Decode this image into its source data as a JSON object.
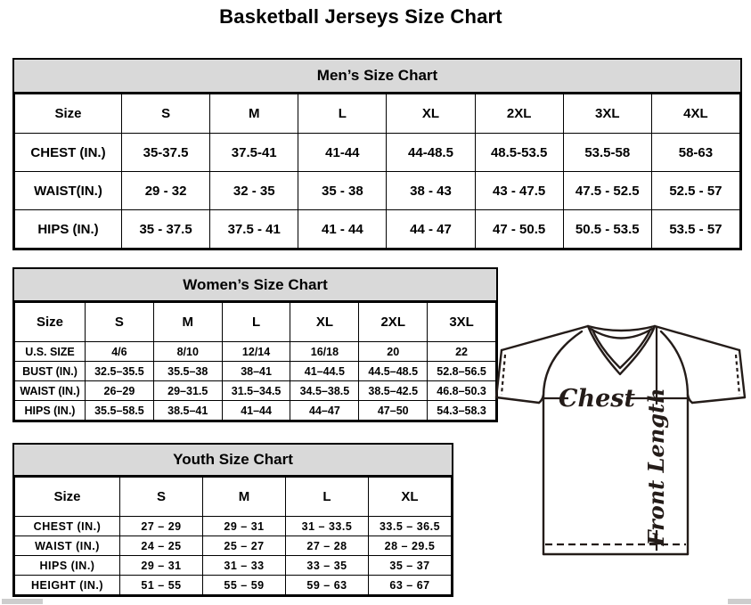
{
  "page_title": "Basketball Jerseys Size Chart",
  "tables": {
    "men": {
      "title": "Men’s Size Chart",
      "columns": [
        "Size",
        "S",
        "M",
        "L",
        "XL",
        "2XL",
        "3XL",
        "4XL"
      ],
      "rows": [
        {
          "label": "CHEST (IN.)",
          "values": [
            "35-37.5",
            "37.5-41",
            "41-44",
            "44-48.5",
            "48.5-53.5",
            "53.5-58",
            "58-63"
          ]
        },
        {
          "label": "WAIST(IN.)",
          "values": [
            "29 - 32",
            "32 - 35",
            "35 - 38",
            "38 - 43",
            "43 - 47.5",
            "47.5 - 52.5",
            "52.5 - 57"
          ]
        },
        {
          "label": "HIPS (IN.)",
          "values": [
            "35 - 37.5",
            "37.5 - 41",
            "41 - 44",
            "44 - 47",
            "47 - 50.5",
            "50.5 - 53.5",
            "53.5 - 57"
          ]
        }
      ]
    },
    "women": {
      "title": "Women’s Size Chart",
      "columns": [
        "Size",
        "S",
        "M",
        "L",
        "XL",
        "2XL",
        "3XL"
      ],
      "rows": [
        {
          "label": "U.S. SIZE",
          "values": [
            "4/6",
            "8/10",
            "12/14",
            "16/18",
            "20",
            "22"
          ]
        },
        {
          "label": "BUST (IN.)",
          "values": [
            "32.5–35.5",
            "35.5–38",
            "38–41",
            "41–44.5",
            "44.5–48.5",
            "52.8–56.5"
          ]
        },
        {
          "label": "WAIST (IN.)",
          "values": [
            "26–29",
            "29–31.5",
            "31.5–34.5",
            "34.5–38.5",
            "38.5–42.5",
            "46.8–50.3"
          ]
        },
        {
          "label": "HIPS (IN.)",
          "values": [
            "35.5–58.5",
            "38.5–41",
            "41–44",
            "44–47",
            "47–50",
            "54.3–58.3"
          ]
        }
      ]
    },
    "youth": {
      "title": "Youth Size Chart",
      "columns": [
        "Size",
        "S",
        "M",
        "L",
        "XL"
      ],
      "rows": [
        {
          "label": "CHEST (IN.)",
          "values": [
            "27 – 29",
            "29 – 31",
            "31 – 33.5",
            "33.5 – 36.5"
          ]
        },
        {
          "label": "WAIST (IN.)",
          "values": [
            "24 – 25",
            "25 – 27",
            "27 – 28",
            "28 – 29.5"
          ]
        },
        {
          "label": "HIPS (IN.)",
          "values": [
            "29 – 31",
            "31 – 33",
            "33 – 35",
            "35 – 37"
          ]
        },
        {
          "label": "HEIGHT (IN.)",
          "values": [
            "51 – 55",
            "55 – 59",
            "59 – 63",
            "63 – 67"
          ]
        }
      ]
    }
  },
  "diagram": {
    "chest_label": "Chest",
    "front_length_label": "Front Length"
  },
  "colors": {
    "table_header_bg": "#d9d9d9",
    "table_border": "#000000",
    "jersey_stroke": "#241c19",
    "scrollbar": "#cdcdcd"
  }
}
